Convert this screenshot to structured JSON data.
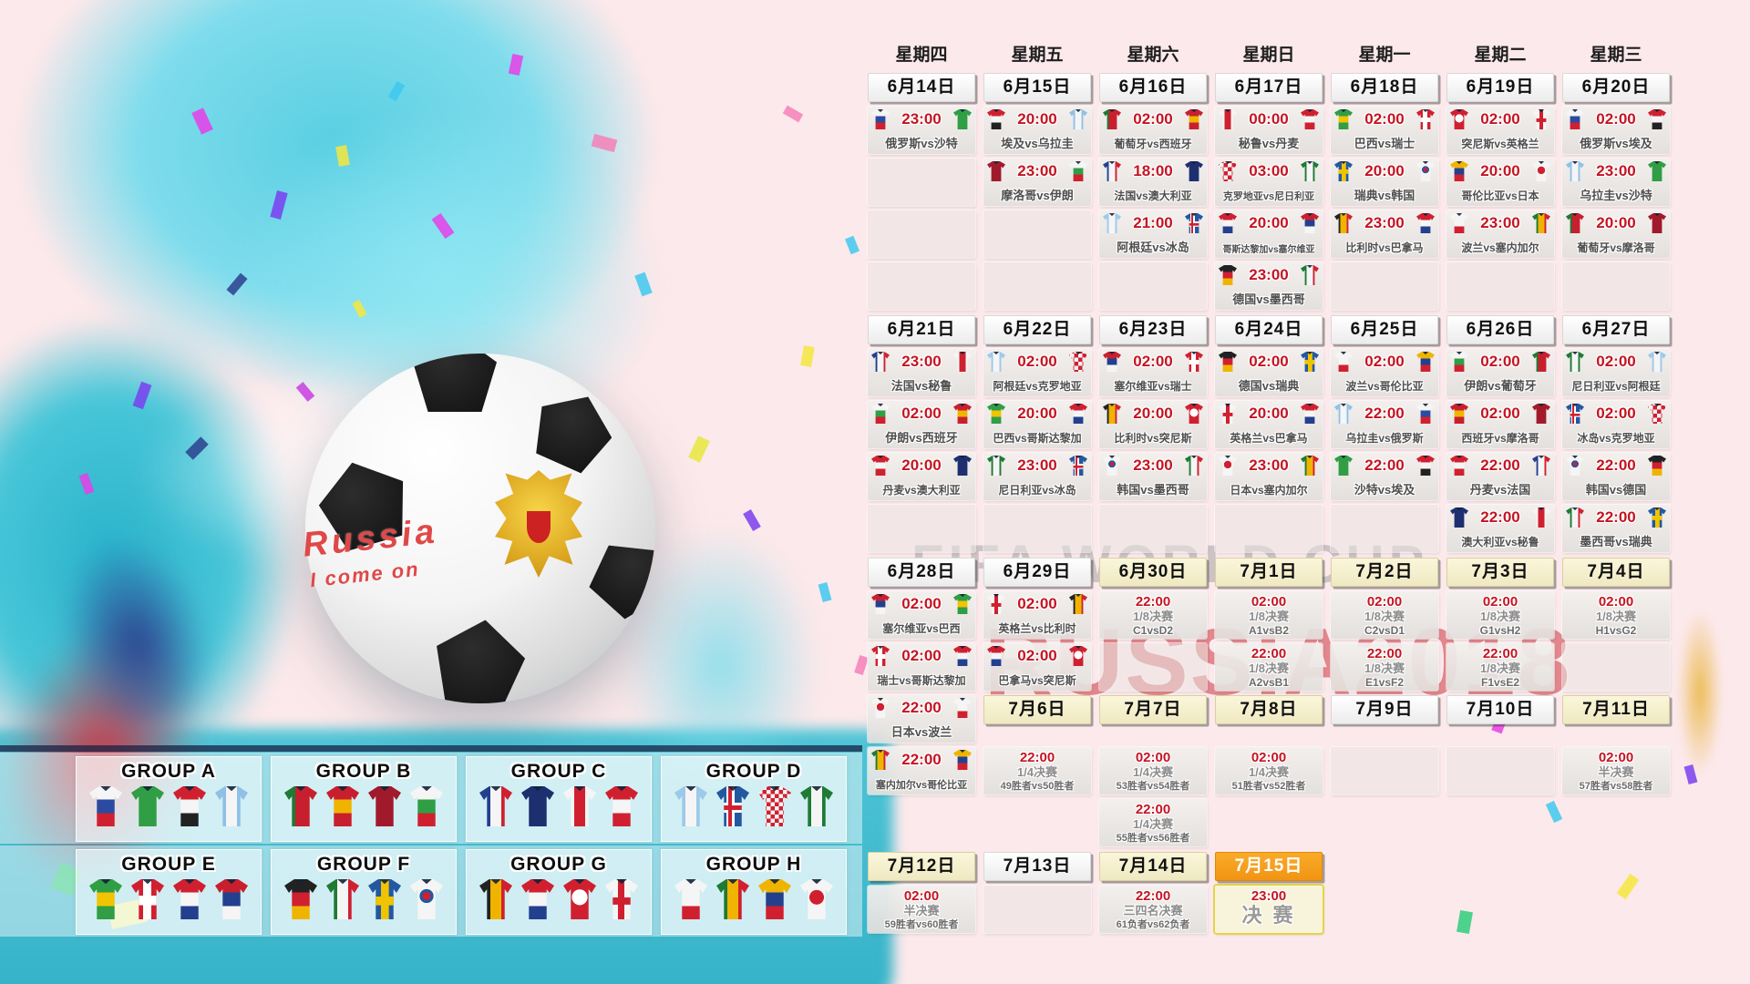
{
  "art": {
    "watermark_line": "FIFA WORLD CUP",
    "watermark_brand": "RUSSIA2018",
    "handwriting_1": "Russia",
    "handwriting_2": "I come on"
  },
  "colors": {
    "time_red": "#c41422",
    "header_white": "#ffffff",
    "header_cream": "#f6f1d3",
    "header_orange": "#f7a21b",
    "page_pink": "#fce9eb",
    "art_teal": "#49c6d8"
  },
  "weekdays": [
    "星期四",
    "星期五",
    "星期六",
    "星期日",
    "星期一",
    "星期二",
    "星期三"
  ],
  "rows": [
    {
      "type": "dates",
      "cells": [
        {
          "k": "d",
          "l": "6月14日",
          "v": "w"
        },
        {
          "k": "d",
          "l": "6月15日",
          "v": "w"
        },
        {
          "k": "d",
          "l": "6月16日",
          "v": "w"
        },
        {
          "k": "d",
          "l": "6月17日",
          "v": "w"
        },
        {
          "k": "d",
          "l": "6月18日",
          "v": "w"
        },
        {
          "k": "d",
          "l": "6月19日",
          "v": "w"
        },
        {
          "k": "d",
          "l": "6月20日",
          "v": "w"
        }
      ]
    },
    {
      "type": "cells",
      "cells": [
        {
          "k": "m",
          "t": "23:00",
          "h": "俄罗斯",
          "a": "沙特"
        },
        {
          "k": "m",
          "t": "20:00",
          "h": "埃及",
          "a": "乌拉圭"
        },
        {
          "k": "m",
          "t": "02:00",
          "h": "葡萄牙",
          "a": "西班牙"
        },
        {
          "k": "m",
          "t": "00:00",
          "h": "秘鲁",
          "a": "丹麦"
        },
        {
          "k": "m",
          "t": "02:00",
          "h": "巴西",
          "a": "瑞士"
        },
        {
          "k": "m",
          "t": "02:00",
          "h": "突尼斯",
          "a": "英格兰"
        },
        {
          "k": "m",
          "t": "02:00",
          "h": "俄罗斯",
          "a": "埃及"
        }
      ]
    },
    {
      "type": "cells",
      "cells": [
        {
          "k": "e"
        },
        {
          "k": "m",
          "t": "23:00",
          "h": "摩洛哥",
          "a": "伊朗"
        },
        {
          "k": "m",
          "t": "18:00",
          "h": "法国",
          "a": "澳大利亚"
        },
        {
          "k": "m",
          "t": "03:00",
          "h": "克罗地亚",
          "a": "尼日利亚"
        },
        {
          "k": "m",
          "t": "20:00",
          "h": "瑞典",
          "a": "韩国"
        },
        {
          "k": "m",
          "t": "20:00",
          "h": "哥伦比亚",
          "a": "日本"
        },
        {
          "k": "m",
          "t": "23:00",
          "h": "乌拉圭",
          "a": "沙特"
        }
      ]
    },
    {
      "type": "cells",
      "cells": [
        {
          "k": "e"
        },
        {
          "k": "e"
        },
        {
          "k": "m",
          "t": "21:00",
          "h": "阿根廷",
          "a": "冰岛"
        },
        {
          "k": "m",
          "t": "20:00",
          "h": "哥斯达黎加",
          "a": "塞尔维亚"
        },
        {
          "k": "m",
          "t": "23:00",
          "h": "比利时",
          "a": "巴拿马"
        },
        {
          "k": "m",
          "t": "23:00",
          "h": "波兰",
          "a": "塞内加尔"
        },
        {
          "k": "m",
          "t": "20:00",
          "h": "葡萄牙",
          "a": "摩洛哥"
        }
      ]
    },
    {
      "type": "cells",
      "cells": [
        {
          "k": "e"
        },
        {
          "k": "e"
        },
        {
          "k": "e"
        },
        {
          "k": "m",
          "t": "23:00",
          "h": "德国",
          "a": "墨西哥"
        },
        {
          "k": "e"
        },
        {
          "k": "e"
        },
        {
          "k": "e"
        }
      ]
    },
    {
      "type": "dates",
      "cells": [
        {
          "k": "d",
          "l": "6月21日",
          "v": "w"
        },
        {
          "k": "d",
          "l": "6月22日",
          "v": "w"
        },
        {
          "k": "d",
          "l": "6月23日",
          "v": "w"
        },
        {
          "k": "d",
          "l": "6月24日",
          "v": "w"
        },
        {
          "k": "d",
          "l": "6月25日",
          "v": "w"
        },
        {
          "k": "d",
          "l": "6月26日",
          "v": "w"
        },
        {
          "k": "d",
          "l": "6月27日",
          "v": "w"
        }
      ]
    },
    {
      "type": "cells",
      "cells": [
        {
          "k": "m",
          "t": "23:00",
          "h": "法国",
          "a": "秘鲁"
        },
        {
          "k": "m",
          "t": "02:00",
          "h": "阿根廷",
          "a": "克罗地亚"
        },
        {
          "k": "m",
          "t": "02:00",
          "h": "塞尔维亚",
          "a": "瑞士"
        },
        {
          "k": "m",
          "t": "02:00",
          "h": "德国",
          "a": "瑞典"
        },
        {
          "k": "m",
          "t": "02:00",
          "h": "波兰",
          "a": "哥伦比亚"
        },
        {
          "k": "m",
          "t": "02:00",
          "h": "伊朗",
          "a": "葡萄牙"
        },
        {
          "k": "m",
          "t": "02:00",
          "h": "尼日利亚",
          "a": "阿根廷"
        }
      ]
    },
    {
      "type": "cells",
      "cells": [
        {
          "k": "m",
          "t": "02:00",
          "h": "伊朗",
          "a": "西班牙"
        },
        {
          "k": "m",
          "t": "20:00",
          "h": "巴西",
          "a": "哥斯达黎加"
        },
        {
          "k": "m",
          "t": "20:00",
          "h": "比利时",
          "a": "突尼斯"
        },
        {
          "k": "m",
          "t": "20:00",
          "h": "英格兰",
          "a": "巴拿马"
        },
        {
          "k": "m",
          "t": "22:00",
          "h": "乌拉圭",
          "a": "俄罗斯"
        },
        {
          "k": "m",
          "t": "02:00",
          "h": "西班牙",
          "a": "摩洛哥"
        },
        {
          "k": "m",
          "t": "02:00",
          "h": "冰岛",
          "a": "克罗地亚"
        }
      ]
    },
    {
      "type": "cells",
      "cells": [
        {
          "k": "m",
          "t": "20:00",
          "h": "丹麦",
          "a": "澳大利亚"
        },
        {
          "k": "m",
          "t": "23:00",
          "h": "尼日利亚",
          "a": "冰岛"
        },
        {
          "k": "m",
          "t": "23:00",
          "h": "韩国",
          "a": "墨西哥"
        },
        {
          "k": "m",
          "t": "23:00",
          "h": "日本",
          "a": "塞内加尔"
        },
        {
          "k": "m",
          "t": "22:00",
          "h": "沙特",
          "a": "埃及"
        },
        {
          "k": "m",
          "t": "22:00",
          "h": "丹麦",
          "a": "法国"
        },
        {
          "k": "m",
          "t": "22:00",
          "h": "韩国",
          "a": "德国"
        }
      ]
    },
    {
      "type": "cells",
      "cells": [
        {
          "k": "e"
        },
        {
          "k": "e"
        },
        {
          "k": "e"
        },
        {
          "k": "e"
        },
        {
          "k": "e"
        },
        {
          "k": "m",
          "t": "22:00",
          "h": "澳大利亚",
          "a": "秘鲁"
        },
        {
          "k": "m",
          "t": "22:00",
          "h": "墨西哥",
          "a": "瑞典"
        }
      ]
    },
    {
      "type": "dates",
      "cells": [
        {
          "k": "d",
          "l": "6月28日",
          "v": "w"
        },
        {
          "k": "d",
          "l": "6月29日",
          "v": "w"
        },
        {
          "k": "d",
          "l": "6月30日",
          "v": "c"
        },
        {
          "k": "d",
          "l": "7月1日",
          "v": "c"
        },
        {
          "k": "d",
          "l": "7月2日",
          "v": "c"
        },
        {
          "k": "d",
          "l": "7月3日",
          "v": "c"
        },
        {
          "k": "d",
          "l": "7月4日",
          "v": "c"
        }
      ]
    },
    {
      "type": "cells",
      "cells": [
        {
          "k": "m",
          "t": "02:00",
          "h": "塞尔维亚",
          "a": "巴西"
        },
        {
          "k": "m",
          "t": "02:00",
          "h": "英格兰",
          "a": "比利时"
        },
        {
          "k": "ko",
          "t": "22:00",
          "s": "1/8决赛",
          "g": "C1vsD2"
        },
        {
          "k": "ko",
          "t": "02:00",
          "s": "1/8决赛",
          "g": "A1vsB2"
        },
        {
          "k": "ko",
          "t": "02:00",
          "s": "1/8决赛",
          "g": "C2vsD1"
        },
        {
          "k": "ko",
          "t": "02:00",
          "s": "1/8决赛",
          "g": "G1vsH2"
        },
        {
          "k": "ko",
          "t": "02:00",
          "s": "1/8决赛",
          "g": "H1vsG2"
        }
      ]
    },
    {
      "type": "cells",
      "cells": [
        {
          "k": "m",
          "t": "02:00",
          "h": "瑞士",
          "a": "哥斯达黎加"
        },
        {
          "k": "m",
          "t": "02:00",
          "h": "巴拿马",
          "a": "突尼斯"
        },
        {
          "k": "e"
        },
        {
          "k": "ko",
          "t": "22:00",
          "s": "1/8决赛",
          "g": "A2vsB1"
        },
        {
          "k": "ko",
          "t": "22:00",
          "s": "1/8决赛",
          "g": "E1vsF2"
        },
        {
          "k": "ko",
          "t": "22:00",
          "s": "1/8决赛",
          "g": "F1vsE2"
        },
        {
          "k": "e"
        }
      ]
    },
    {
      "type": "cells",
      "cells": [
        {
          "k": "m",
          "t": "22:00",
          "h": "日本",
          "a": "波兰"
        },
        {
          "k": "d",
          "l": "7月6日",
          "v": "c"
        },
        {
          "k": "d",
          "l": "7月7日",
          "v": "c"
        },
        {
          "k": "d",
          "l": "7月8日",
          "v": "c"
        },
        {
          "k": "d",
          "l": "7月9日",
          "v": "w"
        },
        {
          "k": "d",
          "l": "7月10日",
          "v": "w"
        },
        {
          "k": "d",
          "l": "7月11日",
          "v": "c"
        }
      ]
    },
    {
      "type": "cells",
      "cells": [
        {
          "k": "m",
          "t": "22:00",
          "h": "塞内加尔",
          "a": "哥伦比亚"
        },
        {
          "k": "ko",
          "t": "22:00",
          "s": "1/4决赛",
          "g": "49胜者vs50胜者"
        },
        {
          "k": "ko",
          "t": "02:00",
          "s": "1/4决赛",
          "g": "53胜者vs54胜者"
        },
        {
          "k": "ko",
          "t": "02:00",
          "s": "1/4决赛",
          "g": "51胜者vs52胜者"
        },
        {
          "k": "e"
        },
        {
          "k": "e"
        },
        {
          "k": "ko",
          "t": "02:00",
          "s": "半决赛",
          "g": "57胜者vs58胜者"
        }
      ]
    },
    {
      "type": "cells",
      "cells": [
        {
          "k": "n"
        },
        {
          "k": "n"
        },
        {
          "k": "ko",
          "t": "22:00",
          "s": "1/4决赛",
          "g": "55胜者vs56胜者"
        },
        {
          "k": "n"
        },
        {
          "k": "n"
        },
        {
          "k": "n"
        },
        {
          "k": "n"
        }
      ]
    },
    {
      "type": "dates",
      "cells": [
        {
          "k": "d",
          "l": "7月12日",
          "v": "c"
        },
        {
          "k": "d",
          "l": "7月13日",
          "v": "w"
        },
        {
          "k": "d",
          "l": "7月14日",
          "v": "c"
        },
        {
          "k": "d",
          "l": "7月15日",
          "v": "o"
        },
        {
          "k": "n"
        },
        {
          "k": "n"
        },
        {
          "k": "n"
        }
      ]
    },
    {
      "type": "cells",
      "cells": [
        {
          "k": "ko",
          "t": "02:00",
          "s": "半决赛",
          "g": "59胜者vs60胜者"
        },
        {
          "k": "e"
        },
        {
          "k": "ko",
          "t": "22:00",
          "s": "三四名决赛",
          "g": "61负者vs62负者"
        },
        {
          "k": "fin",
          "t": "23:00",
          "s": "决 赛"
        },
        {
          "k": "n"
        },
        {
          "k": "n"
        },
        {
          "k": "n"
        }
      ]
    }
  ],
  "groups": [
    {
      "name": "GROUP A",
      "teams": [
        "俄罗斯",
        "沙特",
        "埃及",
        "乌拉圭"
      ]
    },
    {
      "name": "GROUP B",
      "teams": [
        "葡萄牙",
        "西班牙",
        "摩洛哥",
        "伊朗"
      ]
    },
    {
      "name": "GROUP C",
      "teams": [
        "法国",
        "澳大利亚",
        "秘鲁",
        "丹麦"
      ]
    },
    {
      "name": "GROUP D",
      "teams": [
        "阿根廷",
        "冰岛",
        "克罗地亚",
        "尼日利亚"
      ]
    },
    {
      "name": "GROUP E",
      "teams": [
        "巴西",
        "瑞士",
        "哥斯达黎加",
        "塞尔维亚"
      ]
    },
    {
      "name": "GROUP F",
      "teams": [
        "德国",
        "墨西哥",
        "瑞典",
        "韩国"
      ]
    },
    {
      "name": "GROUP G",
      "teams": [
        "比利时",
        "巴拿马",
        "突尼斯",
        "英格兰"
      ]
    },
    {
      "name": "GROUP H",
      "teams": [
        "波兰",
        "塞内加尔",
        "哥伦比亚",
        "日本"
      ]
    }
  ],
  "kits": {
    "俄罗斯": {
      "d": "h",
      "c": [
        "#f5f5f5",
        "#2a4ba0",
        "#d02030"
      ]
    },
    "沙特": {
      "d": "h",
      "c": [
        "#2f9e44"
      ]
    },
    "埃及": {
      "d": "h",
      "c": [
        "#d02030",
        "#f5f5f5",
        "#222222"
      ]
    },
    "乌拉圭": {
      "d": "v",
      "c": [
        "#8fc1e6",
        "#f5f5f5",
        "#8fc1e6"
      ]
    },
    "葡萄牙": {
      "d": "v",
      "c": [
        "#1e7a34",
        "#c81f2e",
        "#c81f2e"
      ]
    },
    "西班牙": {
      "d": "h",
      "c": [
        "#c81f2e",
        "#f0b400",
        "#c81f2e"
      ]
    },
    "摩洛哥": {
      "d": "h",
      "c": [
        "#a11a2b"
      ]
    },
    "伊朗": {
      "d": "h",
      "c": [
        "#f5f5f5",
        "#2f9e44",
        "#d02030"
      ]
    },
    "法国": {
      "d": "v",
      "c": [
        "#23408e",
        "#f5f5f5",
        "#d02030"
      ]
    },
    "澳大利亚": {
      "d": "h",
      "c": [
        "#1d2f6f"
      ]
    },
    "秘鲁": {
      "d": "v",
      "c": [
        "#f5f5f5",
        "#d02030",
        "#f5f5f5"
      ]
    },
    "丹麦": {
      "d": "h",
      "c": [
        "#d02030",
        "#f5f5f5",
        "#d02030"
      ]
    },
    "阿根廷": {
      "d": "v",
      "c": [
        "#9ec9ea",
        "#f5f5f5",
        "#9ec9ea"
      ]
    },
    "冰岛": {
      "d": "h",
      "c": [
        "#2358a0"
      ],
      "p": "crossIS"
    },
    "克罗地亚": {
      "d": "h",
      "c": [
        "#ededed"
      ],
      "p": "checker"
    },
    "尼日利亚": {
      "d": "v",
      "c": [
        "#1e7a34",
        "#f5f5f5",
        "#1e7a34"
      ]
    },
    "巴西": {
      "d": "h",
      "c": [
        "#2f9e44",
        "#f0c400",
        "#2f9e44"
      ]
    },
    "瑞士": {
      "d": "h",
      "c": [
        "#d02030"
      ],
      "p": "crossW"
    },
    "哥斯达黎加": {
      "d": "h",
      "c": [
        "#d02030",
        "#f5f5f5",
        "#23408e"
      ]
    },
    "塞尔维亚": {
      "d": "h",
      "c": [
        "#c81f2e",
        "#23408e",
        "#f5f5f5"
      ]
    },
    "德国": {
      "d": "h",
      "c": [
        "#222222",
        "#d02030",
        "#f0b400"
      ]
    },
    "墨西哥": {
      "d": "v",
      "c": [
        "#1e7a34",
        "#f5f5f5",
        "#d02030"
      ]
    },
    "瑞典": {
      "d": "h",
      "c": [
        "#2358a0"
      ],
      "p": "crossY"
    },
    "韩国": {
      "d": "h",
      "c": [
        "#f5f5f5"
      ],
      "p": "dotTG"
    },
    "比利时": {
      "d": "v",
      "c": [
        "#222222",
        "#f0b400",
        "#d02030"
      ]
    },
    "巴拿马": {
      "d": "h",
      "c": [
        "#d02030",
        "#f5f5f5",
        "#23408e"
      ]
    },
    "突尼斯": {
      "d": "h",
      "c": [
        "#d02030"
      ],
      "p": "dotW"
    },
    "英格兰": {
      "d": "h",
      "c": [
        "#f5f5f5"
      ],
      "p": "crossR"
    },
    "波兰": {
      "d": "h",
      "c": [
        "#f5f5f5",
        "#f5f5f5",
        "#d02030"
      ]
    },
    "塞内加尔": {
      "d": "v",
      "c": [
        "#1e7a34",
        "#f0b400",
        "#d02030"
      ]
    },
    "哥伦比亚": {
      "d": "h",
      "c": [
        "#f0b400",
        "#23408e",
        "#d02030"
      ]
    },
    "日本": {
      "d": "h",
      "c": [
        "#f5f5f5"
      ],
      "p": "dotR"
    }
  }
}
